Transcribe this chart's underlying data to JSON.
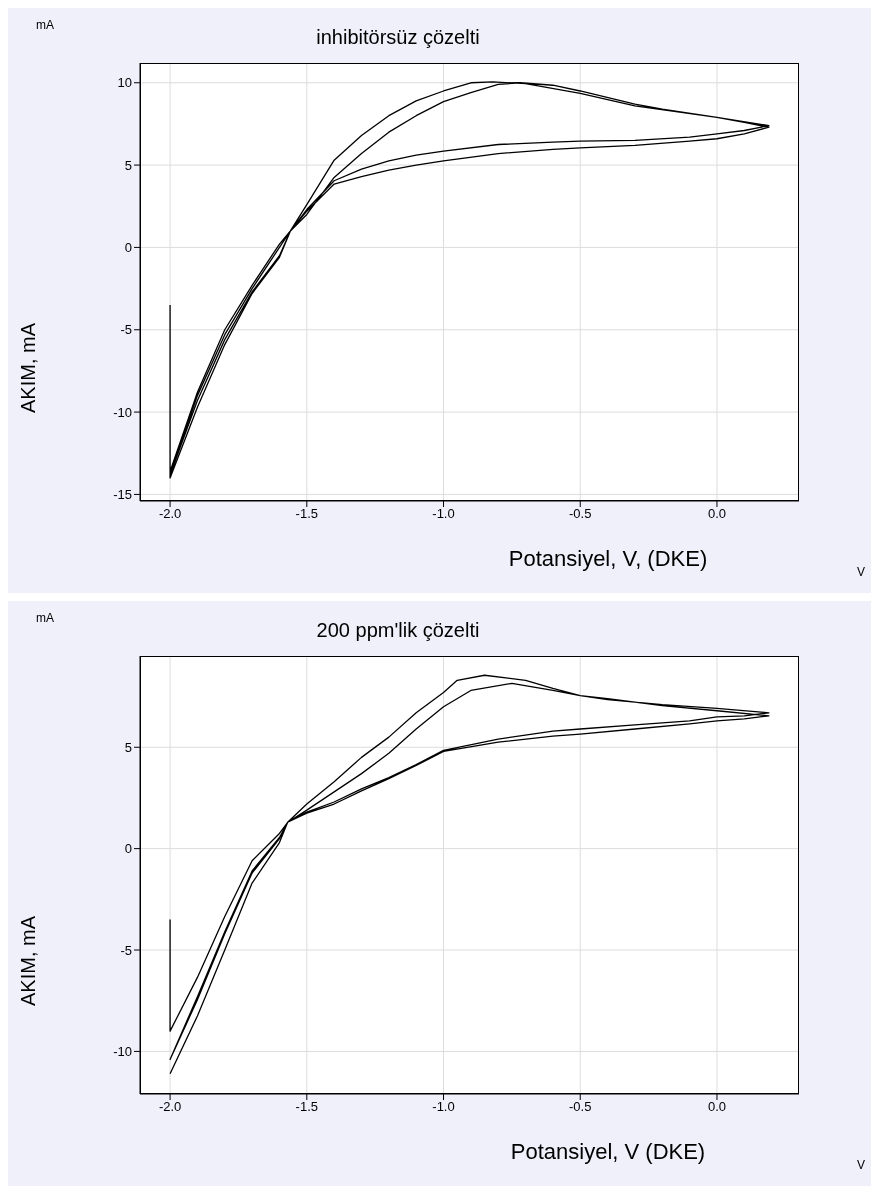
{
  "chart_data": [
    {
      "type": "line",
      "title": "inhibitörsüz çözelti",
      "xlabel": "Potansiyel, V, (DKE)",
      "ylabel": "AKIM, mA",
      "annotations": [
        "mA",
        "V"
      ],
      "xlim": [
        -2.11,
        0.3
      ],
      "ylim": [
        -15.4,
        11.2
      ],
      "xticks": [
        {
          "value": -2,
          "label": "-2.0"
        },
        {
          "value": -1.5,
          "label": "-1.5"
        },
        {
          "value": -1,
          "label": "-1.0"
        },
        {
          "value": -0.5,
          "label": "-0.5"
        },
        {
          "value": 0,
          "label": "0.0"
        }
      ],
      "yticks": [
        -15,
        -10,
        -5,
        0,
        5,
        10
      ],
      "grid": true,
      "marker": "none",
      "series": [
        {
          "color": "#000000",
          "x": [
            -2.0,
            -2.0,
            -1.9,
            -1.8,
            -1.7,
            -1.6,
            -1.56,
            -1.5,
            -1.4,
            -1.3,
            -1.2,
            -1.1,
            -1.0,
            -0.8,
            -0.6,
            -0.5,
            -0.3,
            -0.1,
            0.0,
            0.1,
            0.19,
            0.1,
            0.0,
            -0.2,
            -0.3,
            -0.5,
            -0.6,
            -0.72,
            -0.8,
            -0.9,
            -1.0,
            -1.1,
            -1.2,
            -1.3,
            -1.4,
            -1.5,
            -1.56,
            -1.6,
            -1.7,
            -1.8,
            -1.9,
            -2.0,
            -1.9,
            -1.8,
            -1.7,
            -1.6,
            -1.56,
            -1.5,
            -1.4,
            -1.3,
            -1.2,
            -1.1,
            -1.0,
            -0.8,
            -0.6,
            -0.5,
            -0.3,
            -0.1,
            0.0,
            0.1,
            0.19,
            0.0,
            -0.3,
            -0.5,
            -0.7,
            -0.82,
            -0.9,
            -1.0,
            -1.1,
            -1.2,
            -1.3,
            -1.4,
            -1.5,
            -1.56,
            -1.6,
            -1.7,
            -1.8,
            -1.9,
            -2.0
          ],
          "values": [
            -3.5,
            -14.0,
            -9.7,
            -5.9,
            -2.8,
            -0.6,
            1.0,
            2.2,
            3.85,
            4.3,
            4.7,
            5.0,
            5.25,
            5.7,
            5.95,
            6.05,
            6.2,
            6.45,
            6.6,
            6.9,
            7.3,
            7.6,
            7.9,
            8.4,
            8.7,
            9.5,
            9.85,
            10.0,
            9.9,
            9.4,
            8.85,
            8.0,
            7.0,
            5.7,
            4.25,
            2.0,
            1.0,
            0.0,
            -2.5,
            -5.3,
            -9.0,
            -13.8,
            -9.3,
            -5.6,
            -2.7,
            -0.5,
            1.0,
            2.3,
            4.05,
            4.75,
            5.25,
            5.6,
            5.85,
            6.25,
            6.4,
            6.45,
            6.5,
            6.7,
            6.9,
            7.1,
            7.4,
            7.9,
            8.6,
            9.35,
            9.95,
            10.05,
            10.0,
            9.5,
            8.9,
            8.0,
            6.8,
            5.3,
            2.6,
            1.0,
            0.2,
            -2.3,
            -5.0,
            -8.8,
            -13.6
          ]
        }
      ]
    },
    {
      "type": "line",
      "title": "200 ppm'lik çözelti",
      "xlabel": "Potansiyel, V (DKE)",
      "ylabel": "AKIM, mA",
      "annotations": [
        "mA",
        "V"
      ],
      "xlim": [
        -2.11,
        0.3
      ],
      "ylim": [
        -12.1,
        9.5
      ],
      "xticks": [
        {
          "value": -2,
          "label": "-2.0"
        },
        {
          "value": -1.5,
          "label": "-1.5"
        },
        {
          "value": -1,
          "label": "-1.0"
        },
        {
          "value": -0.5,
          "label": "-0.5"
        },
        {
          "value": 0,
          "label": "0.0"
        }
      ],
      "yticks": [
        -10,
        -5,
        0,
        5
      ],
      "grid": true,
      "marker": "none",
      "series": [
        {
          "color": "#000000",
          "x": [
            -2.0,
            -2.0,
            -1.9,
            -1.8,
            -1.7,
            -1.6,
            -1.57,
            -1.5,
            -1.4,
            -1.3,
            -1.2,
            -1.1,
            -1.0,
            -0.8,
            -0.6,
            -0.5,
            -0.3,
            -0.1,
            0.0,
            0.1,
            0.19,
            0.0,
            -0.2,
            -0.4,
            -0.5,
            -0.6,
            -0.75,
            -0.9,
            -1.0,
            -1.1,
            -1.2,
            -1.3,
            -1.4,
            -1.5,
            -1.57,
            -1.6,
            -1.7,
            -1.8,
            -1.9,
            -2.0,
            -1.9,
            -1.8,
            -1.7,
            -1.6,
            -1.57,
            -1.5,
            -1.4,
            -1.3,
            -1.2,
            -1.1,
            -1.0,
            -0.8,
            -0.6,
            -0.5,
            -0.3,
            -0.1,
            0.0,
            0.1,
            0.19,
            0.0,
            -0.2,
            -0.4,
            -0.5,
            -0.6,
            -0.7,
            -0.85,
            -0.95,
            -1.0,
            -1.1,
            -1.2,
            -1.3,
            -1.4,
            -1.5,
            -1.57,
            -1.6,
            -1.7,
            -1.8,
            -1.9,
            -2.0
          ],
          "values": [
            -3.5,
            -9.0,
            -6.35,
            -3.35,
            -0.6,
            0.75,
            1.3,
            1.75,
            2.2,
            2.85,
            3.45,
            4.1,
            4.8,
            5.25,
            5.55,
            5.65,
            5.9,
            6.15,
            6.3,
            6.4,
            6.55,
            6.8,
            7.05,
            7.4,
            7.55,
            7.8,
            8.15,
            7.8,
            7.0,
            5.9,
            4.7,
            3.7,
            2.8,
            1.9,
            1.3,
            0.5,
            -1.2,
            -4.2,
            -7.45,
            -10.4,
            -7.3,
            -4.1,
            -1.1,
            0.55,
            1.3,
            1.8,
            2.3,
            2.95,
            3.5,
            4.15,
            4.85,
            5.4,
            5.8,
            5.9,
            6.1,
            6.3,
            6.5,
            6.55,
            6.7,
            6.92,
            7.1,
            7.35,
            7.55,
            7.9,
            8.3,
            8.55,
            8.3,
            7.7,
            6.7,
            5.5,
            4.5,
            3.3,
            2.2,
            1.3,
            0.3,
            -1.7,
            -5.0,
            -8.25,
            -11.1
          ]
        }
      ]
    }
  ]
}
